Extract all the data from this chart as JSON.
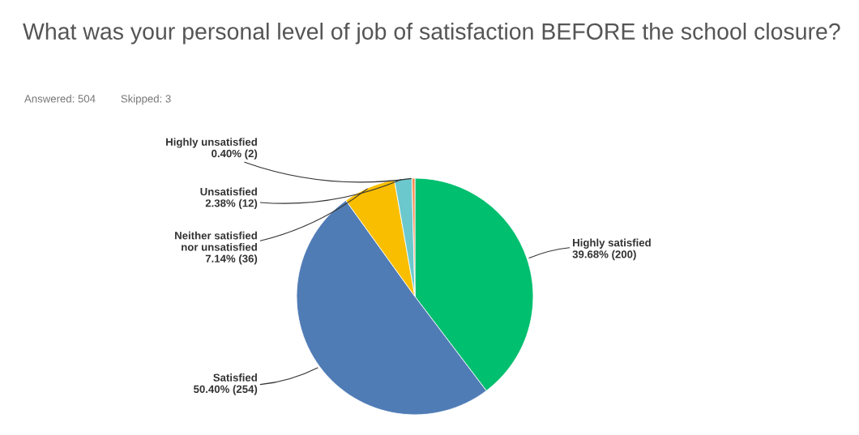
{
  "chart_data": {
    "type": "pie",
    "title": "What was your personal level of job of satisfaction BEFORE the school closure?",
    "annotations": [
      "Answered: 504",
      "Skipped: 3"
    ],
    "categories": [
      "Highly satisfied",
      "Satisfied",
      "Neither satisfied\nnor unsatisfied",
      "Unsatisfied",
      "Highly unsatisfied"
    ],
    "values": [
      200,
      254,
      36,
      12,
      2
    ],
    "value_labels": [
      "39.68% (200)",
      "50.40% (254)",
      "7.14% (36)",
      "2.38% (12)",
      "0.40% (2)"
    ],
    "colors": [
      "#00bf6f",
      "#507cb6",
      "#f9be00",
      "#6bc8cd",
      "#ff8b4f"
    ]
  }
}
